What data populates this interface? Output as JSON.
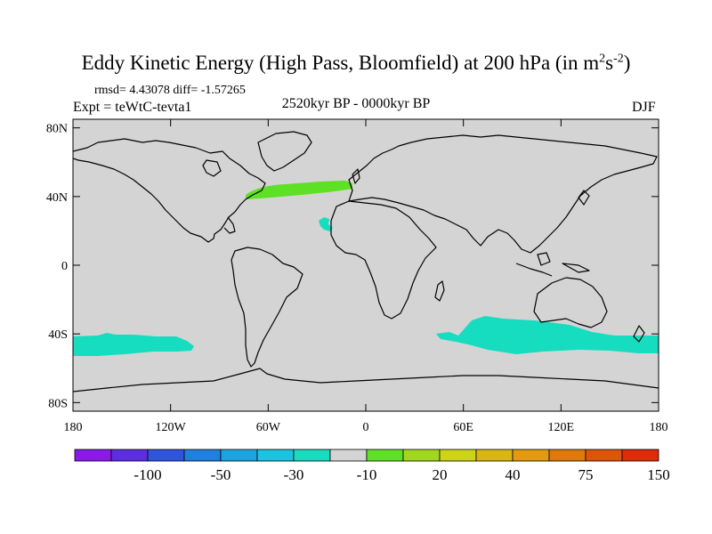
{
  "title": {
    "main": "Eddy Kinetic Energy (High Pass, Bloomfield) at 200 hPa (in m",
    "unit_exp1": "2",
    "unit_mid": "s",
    "unit_exp2": "-2",
    "close": ")"
  },
  "stats": "rmsd= 4.43078 diff= -1.57265",
  "expt": "Expt = teWtC-tevta1",
  "period": "2520kyr BP - 0000kyr BP",
  "season": "DJF",
  "map": {
    "background_color": "#d4d4d4",
    "coastline_color": "#000000",
    "y_ticks": [
      "80N",
      "40N",
      "0",
      "40S",
      "80S"
    ],
    "x_ticks": [
      "180",
      "120W",
      "60W",
      "0",
      "60E",
      "120E",
      "180"
    ]
  },
  "colorbar": {
    "colors": [
      "#8b19ec",
      "#5d2de6",
      "#2f55e0",
      "#1f80e0",
      "#1aa5e0",
      "#19c4e0",
      "#16dcc0",
      "#d4d4d4",
      "#5ee024",
      "#a2d81c",
      "#ccd414",
      "#dcb610",
      "#e39a0c",
      "#e0780a",
      "#de5408",
      "#e02a08"
    ],
    "labels": [
      "-100",
      "-50",
      "-30",
      "-10",
      "20",
      "40",
      "75",
      "150"
    ]
  },
  "anomalies": [
    {
      "name": "north-atlantic-positive-band",
      "color": "#5ee024"
    },
    {
      "name": "subtropical-atlantic-small-patch",
      "color": "#16dcc0"
    },
    {
      "name": "south-pacific-negative-band",
      "color": "#16dcc0"
    },
    {
      "name": "southern-indian-ocean-negative-band",
      "color": "#16dcc0"
    }
  ]
}
